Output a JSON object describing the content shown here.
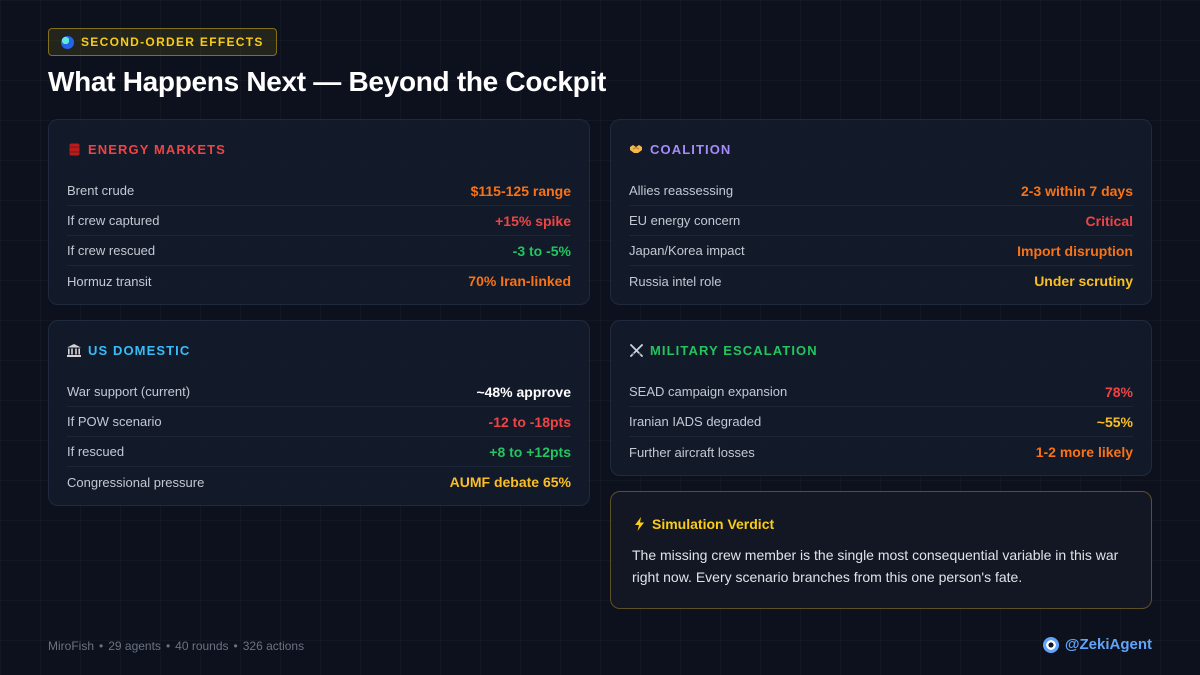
{
  "tag": {
    "icon": "globe-icon",
    "label": "SECOND-ORDER EFFECTS"
  },
  "title": "What Happens Next — Beyond the Cockpit",
  "cards": {
    "energy": {
      "icon": "oil-barrel-icon",
      "title": "ENERGY MARKETS",
      "rows": [
        {
          "label": "Brent crude",
          "value": "$115-125 range"
        },
        {
          "label": "If crew captured",
          "value": "+15% spike"
        },
        {
          "label": "If crew rescued",
          "value": "-3 to -5%"
        },
        {
          "label": "Hormuz transit",
          "value": "70% Iran-linked"
        }
      ]
    },
    "coalition": {
      "icon": "handshake-icon",
      "title": "COALITION",
      "rows": [
        {
          "label": "Allies reassessing",
          "value": "2-3 within 7 days"
        },
        {
          "label": "EU energy concern",
          "value": "Critical"
        },
        {
          "label": "Japan/Korea impact",
          "value": "Import disruption"
        },
        {
          "label": "Russia intel role",
          "value": "Under scrutiny"
        }
      ]
    },
    "domestic": {
      "icon": "capitol-building-icon",
      "title": "US DOMESTIC",
      "rows": [
        {
          "label": "War support (current)",
          "value": "~48% approve"
        },
        {
          "label": "If POW scenario",
          "value": "-12 to -18pts"
        },
        {
          "label": "If rescued",
          "value": "+8 to +12pts"
        },
        {
          "label": "Congressional pressure",
          "value": "AUMF debate 65%"
        }
      ]
    },
    "military": {
      "icon": "crossed-swords-icon",
      "title": "MILITARY ESCALATION",
      "rows": [
        {
          "label": "SEAD campaign expansion",
          "value": "78%"
        },
        {
          "label": "Iranian IADS degraded",
          "value": "~55%"
        },
        {
          "label": "Further aircraft losses",
          "value": "1-2 more likely"
        }
      ]
    }
  },
  "verdict": {
    "icon": "lightning-icon",
    "title": "Simulation Verdict",
    "text": "The missing crew member is the single most consequential variable in this war right now. Every scenario branches from this one person's fate."
  },
  "footer": {
    "brand": "MiroFish",
    "agents": "29 agents",
    "rounds": "40 rounds",
    "actions": "326 actions",
    "handle_icon": "evil-eye-icon",
    "handle": "@ZekiAgent"
  },
  "colors": {
    "background": "#0c111d",
    "energy_heading": "#ef4444",
    "coalition_heading": "#a78bfa",
    "domestic_heading": "#38bdf8",
    "military_heading": "#22c55e",
    "accent_yellow": "#facc15",
    "value_orange": "#f97316",
    "value_red": "#ef4444",
    "value_green": "#22c55e",
    "value_amber": "#fbbf24"
  }
}
